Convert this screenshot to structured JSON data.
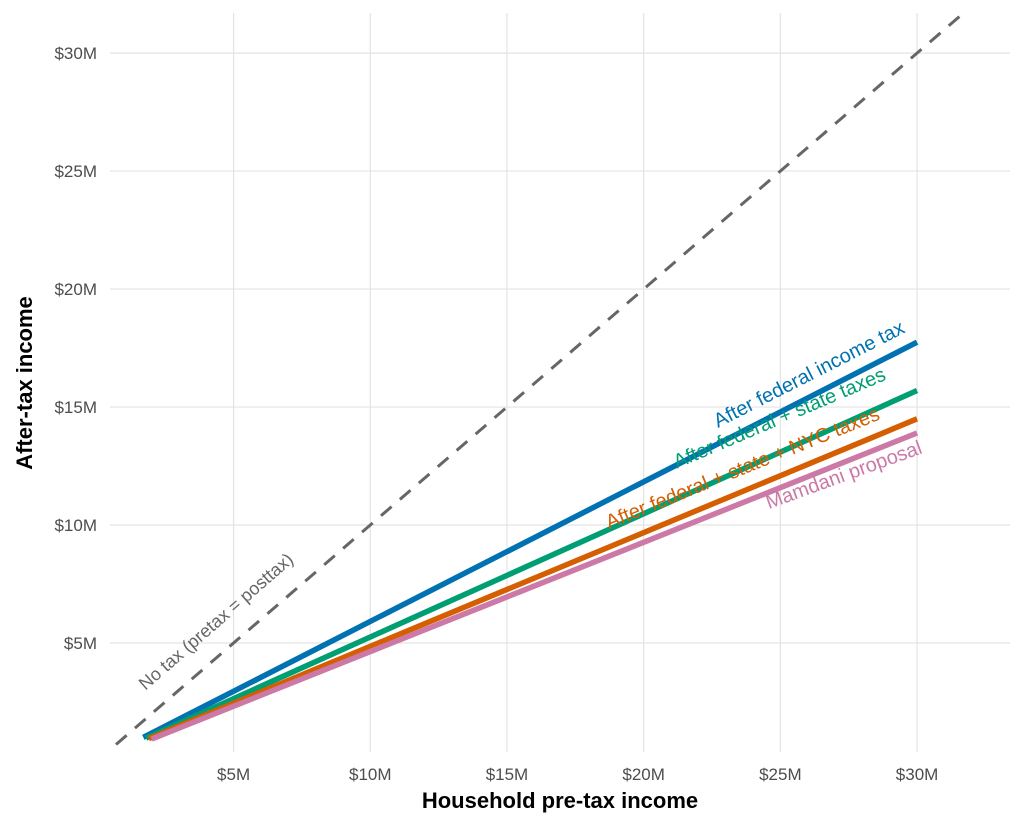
{
  "chart_data": {
    "type": "line",
    "title": "",
    "xlabel": "Household pre-tax income",
    "ylabel": "After-tax income",
    "xlim": [
      0.48,
      33.4
    ],
    "ylim": [
      0.38,
      31.7
    ],
    "grid": true,
    "x_ticks": [
      5,
      10,
      15,
      20,
      25,
      30
    ],
    "x_tick_labels": [
      "$5M",
      "$10M",
      "$15M",
      "$20M",
      "$25M",
      "$30M"
    ],
    "y_ticks": [
      5,
      10,
      15,
      20,
      25,
      30
    ],
    "y_tick_labels": [
      "$5M",
      "$10M",
      "$15M",
      "$20M",
      "$25M",
      "$30M"
    ],
    "reference": {
      "name": "No tax (pretax = posttax)",
      "color": "#666666",
      "x": [
        0.7,
        31.6
      ],
      "y": [
        0.7,
        31.6
      ]
    },
    "series": [
      {
        "name": "After federal income tax",
        "color": "#0072B2",
        "x": [
          1.7,
          30
        ],
        "y": [
          1.0,
          17.75
        ]
      },
      {
        "name": "After federal + state taxes",
        "color": "#009E73",
        "x": [
          1.8,
          30
        ],
        "y": [
          0.97,
          15.7
        ]
      },
      {
        "name": "After federal + state + NYC taxes",
        "color": "#D55E00",
        "x": [
          1.9,
          30
        ],
        "y": [
          0.95,
          14.5
        ]
      },
      {
        "name": "Mamdani proposal",
        "color": "#CC79A7",
        "x": [
          2.0,
          30
        ],
        "y": [
          0.93,
          13.9
        ]
      }
    ]
  }
}
